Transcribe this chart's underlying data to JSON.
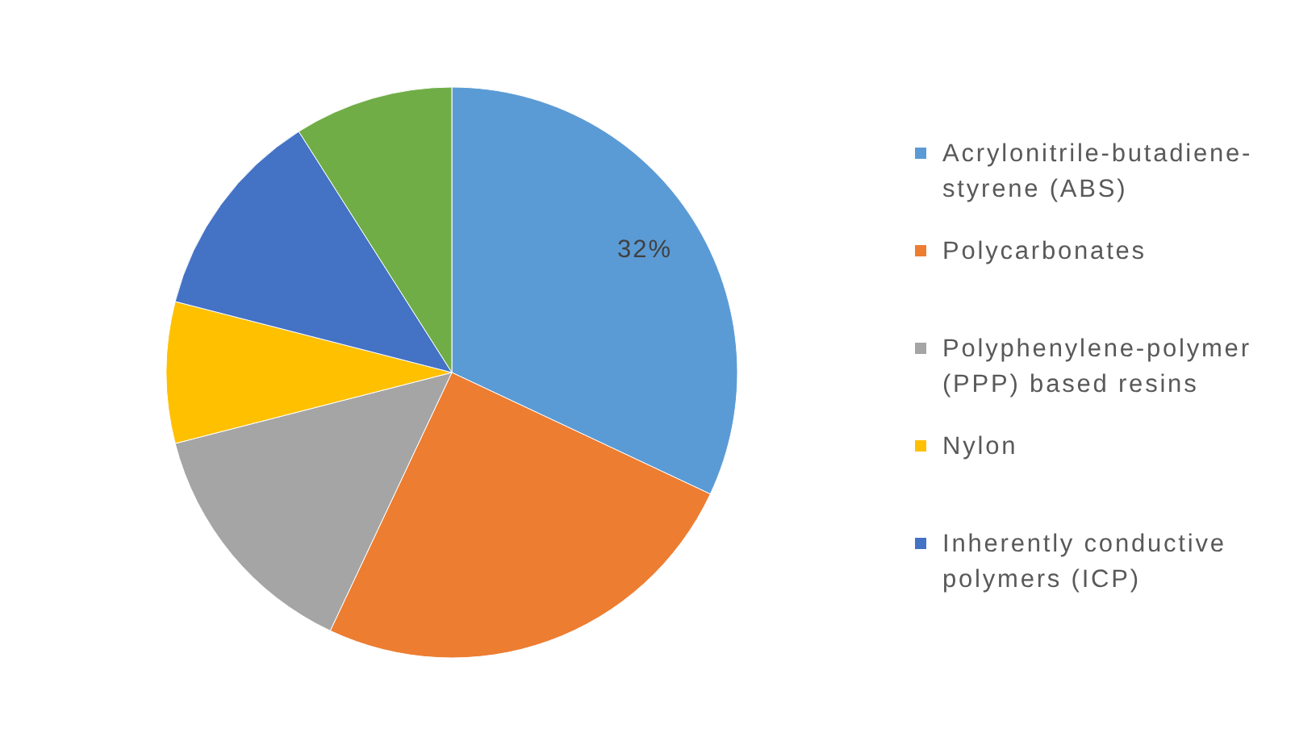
{
  "chart_data": {
    "type": "pie",
    "categories": [
      "Acrylonitrile-butadiene-styrene (ABS)",
      "Polycarbonates",
      "Polyphenylene-polymer (PPP) based resins",
      "Nylon",
      "Inherently conductive polymers (ICP)",
      null
    ],
    "values": [
      32,
      25,
      14,
      8,
      12,
      9
    ],
    "colors": [
      "#5b9bd5",
      "#ed7d31",
      "#a5a5a5",
      "#ffc000",
      "#4472c4",
      "#70ad47"
    ],
    "value_labels": [
      "32%",
      null,
      null,
      null,
      null,
      null
    ],
    "legend": "right"
  }
}
